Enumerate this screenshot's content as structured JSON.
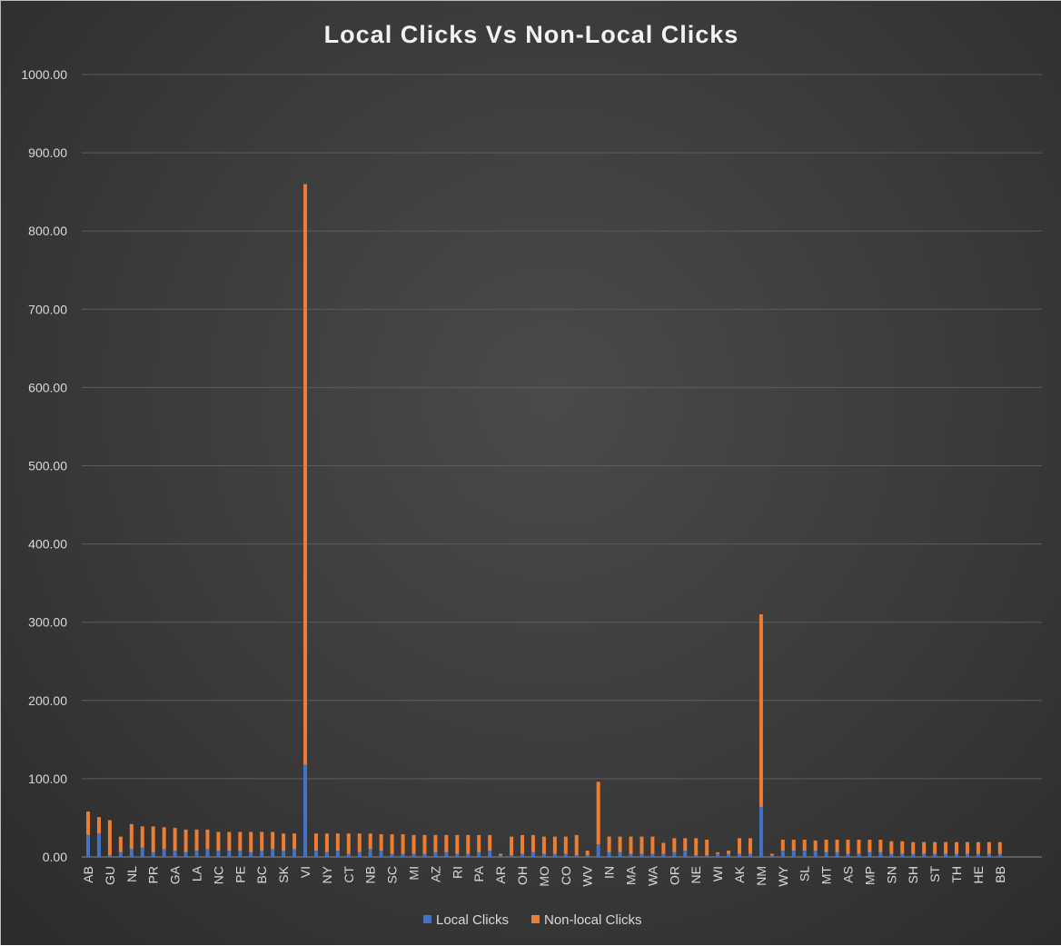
{
  "chart_data": {
    "type": "bar",
    "stacked": true,
    "title": "Local Clicks Vs Non-Local Clicks",
    "xlabel": "",
    "ylabel": "",
    "ylim": [
      0,
      1000
    ],
    "y_ticks": [
      "0.00",
      "100.00",
      "200.00",
      "300.00",
      "400.00",
      "500.00",
      "600.00",
      "700.00",
      "800.00",
      "900.00",
      "1000.00"
    ],
    "y_tick_values": [
      0,
      100,
      200,
      300,
      400,
      500,
      600,
      700,
      800,
      900,
      1000
    ],
    "grid": true,
    "legend_position": "bottom",
    "colors": {
      "local": "#4472c4",
      "nonlocal": "#ed7d31"
    },
    "categories": [
      "AB",
      "",
      "GU",
      "",
      "NL",
      "",
      "PR",
      "",
      "GA",
      "",
      "LA",
      "",
      "NC",
      "",
      "PE",
      "",
      "BC",
      "",
      "SK",
      "",
      "VI",
      "",
      "NY",
      "",
      "CT",
      "",
      "NB",
      "",
      "SC",
      "",
      "MI",
      "",
      "AZ",
      "",
      "RI",
      "",
      "PA",
      "",
      "AR",
      "",
      "OH",
      "",
      "MO",
      "",
      "CO",
      "",
      "WV",
      "",
      "IN",
      "",
      "MA",
      "",
      "WA",
      "",
      "OR",
      "",
      "NE",
      "",
      "WI",
      "",
      "AK",
      "",
      "NM",
      "",
      "WY",
      "",
      "SL",
      "",
      "MT",
      "",
      "AS",
      "",
      "MP",
      "",
      "SN",
      "",
      "SH",
      "",
      "ST",
      "",
      "TH",
      "",
      "HE",
      "",
      "BB"
    ],
    "series": [
      {
        "name": "Local Clicks",
        "values": [
          28,
          30,
          2,
          6,
          10,
          12,
          6,
          10,
          8,
          6,
          8,
          10,
          8,
          8,
          8,
          6,
          8,
          10,
          8,
          10,
          118,
          8,
          6,
          8,
          4,
          6,
          10,
          8,
          4,
          4,
          4,
          4,
          6,
          6,
          4,
          4,
          6,
          8,
          2,
          2,
          4,
          6,
          4,
          4,
          4,
          2,
          2,
          16,
          6,
          6,
          4,
          4,
          4,
          4,
          6,
          8,
          2,
          2,
          4,
          4,
          4,
          4,
          64,
          2,
          8,
          8,
          8,
          8,
          6,
          6,
          4,
          4,
          6,
          6,
          4,
          4,
          4,
          4,
          4,
          4,
          4,
          4,
          4,
          4,
          4
        ]
      },
      {
        "name": "Non-local Clicks",
        "values": [
          30,
          21,
          45,
          20,
          32,
          27,
          33,
          28,
          29,
          29,
          27,
          25,
          24,
          24,
          24,
          26,
          24,
          22,
          22,
          20,
          742,
          22,
          24,
          22,
          26,
          24,
          20,
          21,
          25,
          25,
          24,
          24,
          22,
          22,
          24,
          24,
          22,
          20,
          2,
          24,
          24,
          22,
          22,
          22,
          22,
          26,
          6,
          80,
          20,
          20,
          22,
          22,
          22,
          14,
          18,
          16,
          22,
          20,
          2,
          4,
          20,
          20,
          246,
          2,
          14,
          14,
          14,
          13,
          16,
          16,
          18,
          18,
          16,
          16,
          16,
          16,
          15,
          15,
          15,
          15,
          15,
          15,
          15,
          15,
          15
        ]
      }
    ]
  }
}
